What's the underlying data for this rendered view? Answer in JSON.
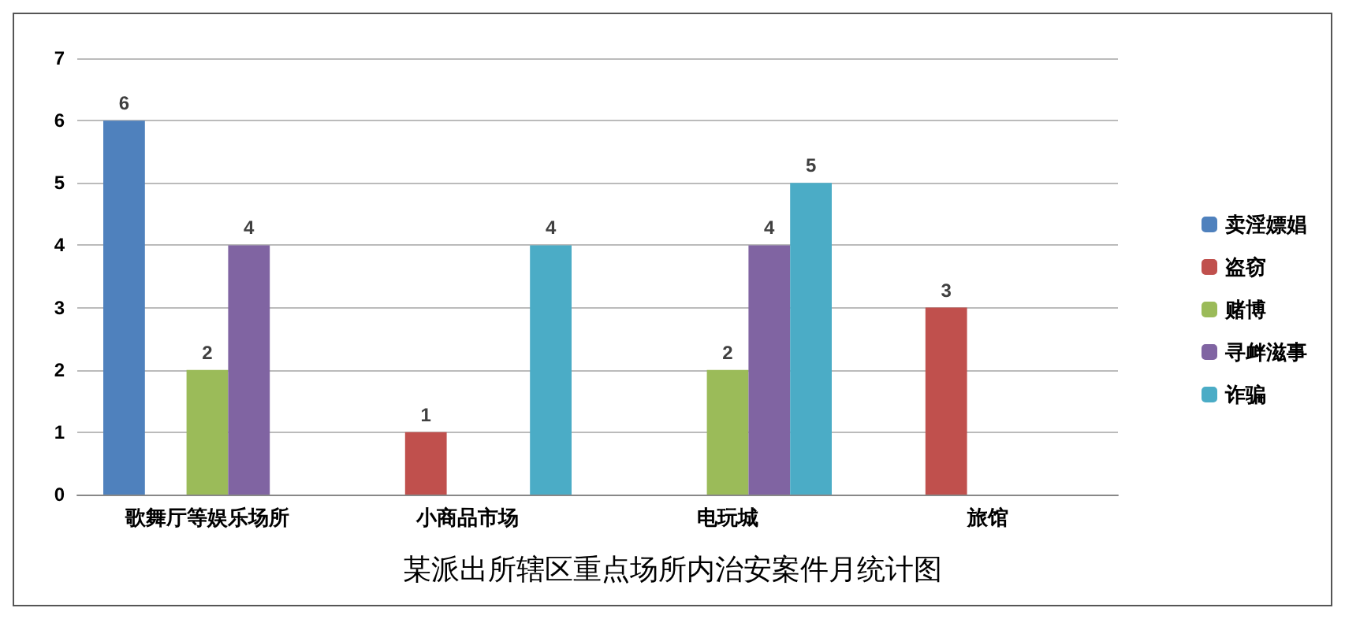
{
  "chart_data": {
    "type": "bar",
    "title": "某派出所辖区重点场所内治安案件月统计图",
    "categories": [
      "歌舞厅等娱乐场所",
      "小商品市场",
      "电玩城",
      "旅馆"
    ],
    "series": [
      {
        "name": "卖淫嫖娼",
        "color": "#4f81bd",
        "values": [
          6,
          null,
          null,
          null
        ]
      },
      {
        "name": "盗窃",
        "color": "#c0504d",
        "values": [
          null,
          1,
          null,
          3
        ]
      },
      {
        "name": "赌博",
        "color": "#9bbb59",
        "values": [
          2,
          null,
          2,
          null
        ]
      },
      {
        "name": "寻衅滋事",
        "color": "#8064a2",
        "values": [
          4,
          null,
          4,
          null
        ]
      },
      {
        "name": "诈骗",
        "color": "#4bacc6",
        "values": [
          null,
          4,
          5,
          null
        ]
      }
    ],
    "ylim": [
      0,
      7
    ],
    "yticks": [
      0,
      1,
      2,
      3,
      4,
      5,
      6,
      7
    ],
    "grid": "y",
    "legend": "right",
    "data_labels": true
  }
}
